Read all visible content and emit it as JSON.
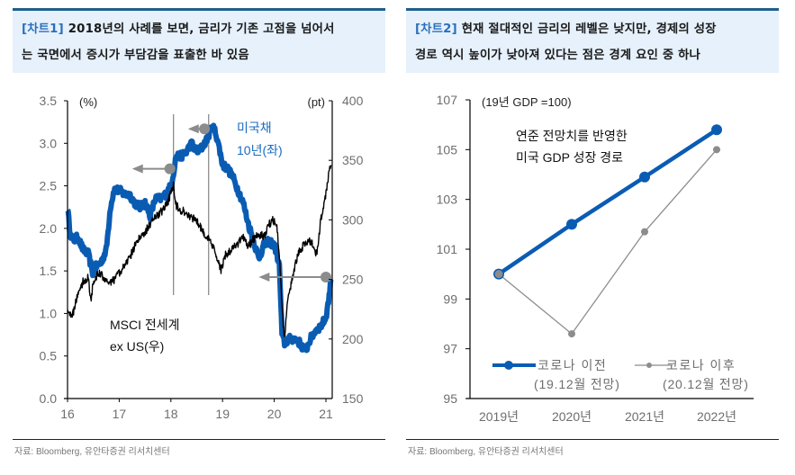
{
  "panels": [
    {
      "tag": "[차트1]",
      "title_line1": " 2018년의 사례를 보면, 금리가 기존 고점을 넘어서",
      "title_line2": "는 국면에서 증시가 부담감을 표출한 바 있음",
      "source": "자료: Bloomberg, 유안타증권 리서치센터"
    },
    {
      "tag": "[차트2]",
      "title_line1": " 현재 절대적인 금리의 레벨은 낮지만, 경제의 성장",
      "title_line2": "경로 역시 높이가 낮아져 있다는 점은 경계 요인 중 하나",
      "source": "자료: Bloomberg, 유안타증권 리서치센터"
    }
  ],
  "colors": {
    "blue": "#0a5cb3",
    "black": "#000000",
    "gray": "#8c8c8c",
    "axis_text": "#6e6e6e",
    "title_bg": "#e6f1fc",
    "title_border": "#1f5f8c",
    "tag": "#2a6fbd"
  },
  "chart_data": [
    {
      "type": "line",
      "title": "2018년의 사례를 보면, 금리가 기존 고점을 넘어서는 국면에서 증시가 부담감을 표출한 바 있음",
      "xlabel": "",
      "ylabel_left": "(%)",
      "ylabel_right": "(pt)",
      "xlim": [
        16,
        21.1
      ],
      "ylim_left": [
        0,
        3.5
      ],
      "ylim_right": [
        150,
        400
      ],
      "x_ticks": [
        "16",
        "17",
        "18",
        "19",
        "20",
        "21"
      ],
      "x_tick_values": [
        16,
        17,
        18,
        19,
        20,
        21
      ],
      "y_left_ticks": [
        "0.0",
        "0.5",
        "1.0",
        "1.5",
        "2.0",
        "2.5",
        "3.0",
        "3.5"
      ],
      "y_left_tick_values": [
        0,
        0.5,
        1.0,
        1.5,
        2.0,
        2.5,
        3.0,
        3.5
      ],
      "y_right_ticks": [
        "150",
        "200",
        "250",
        "300",
        "350",
        "400"
      ],
      "y_right_tick_values": [
        150,
        200,
        250,
        300,
        350,
        400
      ],
      "grid": false,
      "series": [
        {
          "name": "미국채 10년(좌)",
          "axis": "left",
          "label_line1": "미국채",
          "label_line2": "10년(좌)",
          "x": [
            16.0,
            16.05,
            16.1,
            16.2,
            16.3,
            16.4,
            16.5,
            16.55,
            16.65,
            16.75,
            16.83,
            16.9,
            17.0,
            17.1,
            17.2,
            17.3,
            17.4,
            17.5,
            17.6,
            17.7,
            17.8,
            17.9,
            18.0,
            18.05,
            18.1,
            18.2,
            18.3,
            18.4,
            18.5,
            18.6,
            18.7,
            18.8,
            18.85,
            18.9,
            19.0,
            19.1,
            19.2,
            19.3,
            19.4,
            19.5,
            19.6,
            19.7,
            19.8,
            19.9,
            20.0,
            20.05,
            20.1,
            20.15,
            20.2,
            20.3,
            20.4,
            20.5,
            20.6,
            20.7,
            20.8,
            20.9,
            21.0,
            21.05,
            21.1
          ],
          "values": [
            2.25,
            1.95,
            1.85,
            1.9,
            1.75,
            1.7,
            1.45,
            1.55,
            1.6,
            1.75,
            2.25,
            2.45,
            2.45,
            2.4,
            2.4,
            2.3,
            2.25,
            2.3,
            2.15,
            2.35,
            2.35,
            2.4,
            2.5,
            2.65,
            2.85,
            2.85,
            2.9,
            3.0,
            2.9,
            2.95,
            3.05,
            3.2,
            3.15,
            3.05,
            2.75,
            2.7,
            2.6,
            2.45,
            2.3,
            2.05,
            1.85,
            1.65,
            1.8,
            1.85,
            1.8,
            1.7,
            1.55,
            0.75,
            0.65,
            0.7,
            0.7,
            0.65,
            0.55,
            0.7,
            0.8,
            0.85,
            0.95,
            1.15,
            1.4
          ]
        },
        {
          "name": "MSCI 전세계 ex US(우)",
          "axis": "right",
          "label_line1": "MSCI 전세계",
          "label_line2": "ex US(우)",
          "x": [
            16.0,
            16.05,
            16.1,
            16.2,
            16.3,
            16.4,
            16.45,
            16.5,
            16.6,
            16.7,
            16.8,
            16.9,
            17.0,
            17.1,
            17.2,
            17.3,
            17.4,
            17.5,
            17.6,
            17.7,
            17.8,
            17.9,
            17.95,
            18.05,
            18.1,
            18.2,
            18.3,
            18.4,
            18.5,
            18.6,
            18.7,
            18.75,
            18.8,
            18.9,
            18.97,
            19.05,
            19.2,
            19.3,
            19.4,
            19.5,
            19.6,
            19.7,
            19.8,
            19.9,
            19.97,
            20.05,
            20.1,
            20.15,
            20.2,
            20.25,
            20.3,
            20.4,
            20.5,
            20.6,
            20.7,
            20.78,
            20.82,
            20.9,
            21.0,
            21.05,
            21.1
          ],
          "values": [
            225,
            222,
            220,
            238,
            248,
            252,
            232,
            248,
            255,
            252,
            245,
            250,
            255,
            262,
            268,
            278,
            285,
            290,
            296,
            302,
            306,
            312,
            316,
            330,
            312,
            308,
            306,
            302,
            300,
            292,
            285,
            282,
            278,
            268,
            258,
            270,
            276,
            280,
            286,
            278,
            284,
            288,
            286,
            296,
            300,
            296,
            270,
            225,
            200,
            230,
            240,
            262,
            275,
            280,
            282,
            278,
            270,
            300,
            322,
            338,
            346
          ]
        }
      ],
      "annotations": {
        "vertical_lines_x": [
          18.05,
          18.73
        ],
        "arrows": [
          {
            "from_x": 17.98,
            "to_x": 17.25,
            "y_left": 2.7
          },
          {
            "from_x": 18.65,
            "to_x": 18.33,
            "y_left": 3.17
          },
          {
            "from_x": 21.0,
            "to_x": 19.7,
            "y_right": 252
          }
        ]
      }
    },
    {
      "type": "line",
      "title": "현재 절대적인 금리의 레벨은 낮지만, 경제의 성장경로 역시 높이가 낮아져 있다는 점은 경계 요인 중 하나",
      "subtitle": "(19년 GDP =100)",
      "annotation": [
        "연준 전망치를 반영한",
        "미국 GDP 성장 경로"
      ],
      "xlabel": "",
      "ylabel": "",
      "categories": [
        "2019년",
        "2020년",
        "2021년",
        "2022년"
      ],
      "ylim": [
        95,
        107
      ],
      "y_ticks": [
        "95",
        "97",
        "99",
        "101",
        "103",
        "105",
        "107"
      ],
      "y_tick_values": [
        95,
        97,
        99,
        101,
        103,
        105,
        107
      ],
      "grid": false,
      "legend_position": "bottom-inside",
      "series": [
        {
          "name": "코로나 이전 (19.12월 전망)",
          "legend_line1": "코로나 이전",
          "legend_line2": "(19.12월 전망)",
          "values": [
            100.0,
            102.0,
            103.9,
            105.8
          ]
        },
        {
          "name": "코로나 이후 (20.12월 전망)",
          "legend_line1": "코로나 이후",
          "legend_line2": "(20.12월 전망)",
          "values": [
            100.0,
            97.6,
            101.7,
            105.0
          ]
        }
      ]
    }
  ]
}
